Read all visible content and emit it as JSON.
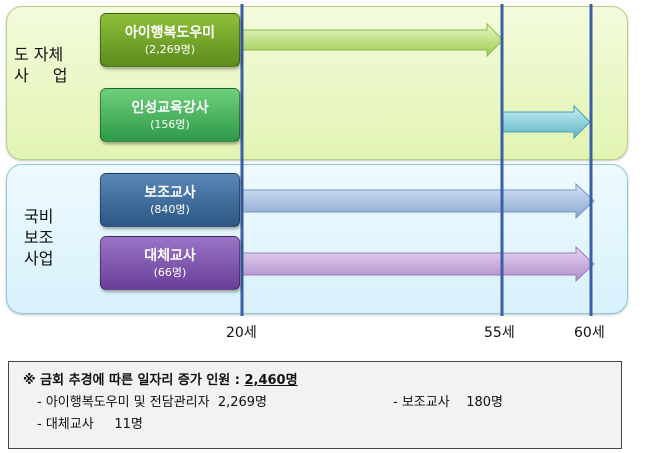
{
  "groups": {
    "top": {
      "line1": "도 자체",
      "line2": "사업"
    },
    "bottom": {
      "line1": "국비",
      "line2": "보조",
      "line3": "사업"
    }
  },
  "boxes": [
    {
      "name": "아이행복도우미",
      "count": "(2,269명)",
      "color": "#7aa82e"
    },
    {
      "name": "인성교육강사",
      "count": "(156명)",
      "color": "#46b35f"
    },
    {
      "name": "보조교사",
      "count": "(840명)",
      "color": "#3e6fa0"
    },
    {
      "name": "대체교사",
      "count": "(66명)",
      "color": "#7f55b0"
    }
  ],
  "axis": {
    "a": "20세",
    "b": "55세",
    "c": "60세"
  },
  "note": {
    "prefix": "※ 금회 추경에 따른 일자리 증가 인원 : ",
    "total": "2,460명",
    "item1": "- 아이행복도우미 및 전담관리자  2,269명",
    "item2": "- 보조교사    180명",
    "item3": "- 대체교사     11명"
  }
}
